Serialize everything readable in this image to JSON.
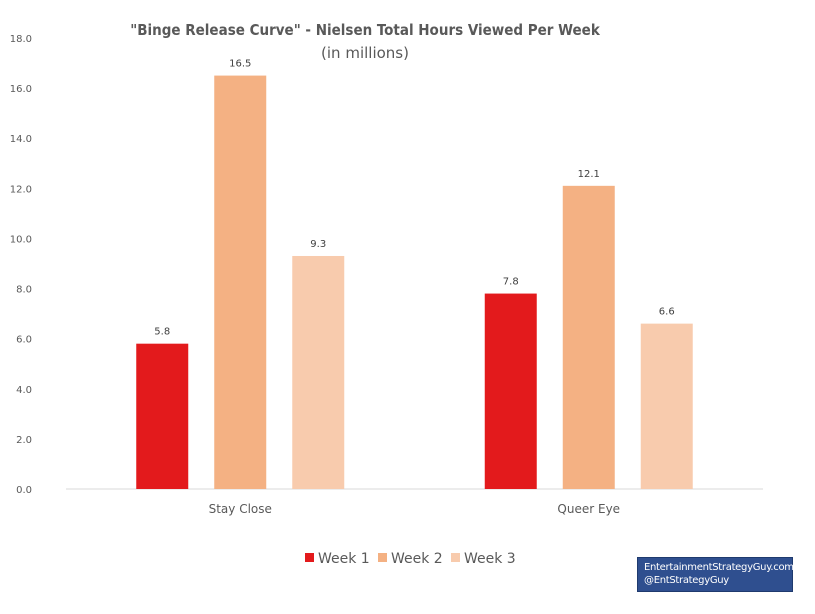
{
  "chart_data": {
    "type": "bar",
    "title": "\"Binge Release Curve\" - Nielsen Total Hours Viewed Per Week",
    "subtitle": "(in millions)",
    "categories": [
      "Stay Close",
      "Queer Eye"
    ],
    "series": [
      {
        "name": "Week 1",
        "values": [
          5.8,
          7.8
        ],
        "labels": [
          "5.8",
          "7.8"
        ],
        "color": "#e31a1c"
      },
      {
        "name": "Week 2",
        "values": [
          16.5,
          12.1
        ],
        "labels": [
          "16.5",
          "12.1"
        ],
        "color": "#f4b183"
      },
      {
        "name": "Week 3",
        "values": [
          9.3,
          6.6
        ],
        "labels": [
          "9.3",
          "6.6"
        ],
        "color": "#f8cbad"
      }
    ],
    "ylim": [
      0,
      18
    ],
    "yticks": [
      "0.0",
      "2.0",
      "4.0",
      "6.0",
      "8.0",
      "10.0",
      "12.0",
      "14.0",
      "16.0",
      "18.0"
    ],
    "xlabel": "",
    "ylabel": "",
    "grid": false,
    "legend": "bottom",
    "data_labels": true
  },
  "credit": {
    "line1": "EntertainmentStrategyGuy.com",
    "line2": "@EntStrategyGuy",
    "background": "#2f4f8f"
  }
}
